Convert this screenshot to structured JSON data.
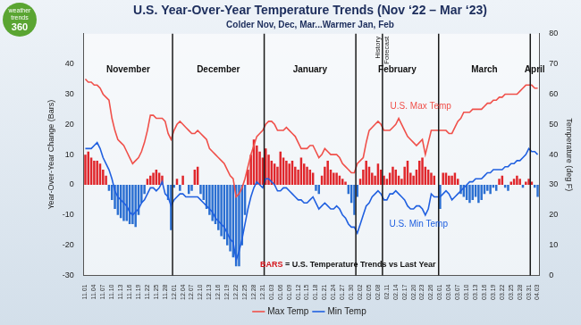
{
  "chart_data": {
    "type": "bar",
    "title": "U.S. Year-Over-Year Temperature Trends (Nov ‘22 – Mar ‘23)",
    "subtitle": "Colder Nov, Dec, Mar...Warmer Jan, Feb",
    "logo": [
      "weather",
      "trends",
      "360"
    ],
    "categories": [
      "11.01",
      null,
      null,
      "11.04",
      null,
      null,
      "11.07",
      null,
      null,
      "11.10",
      null,
      null,
      "11.13",
      null,
      null,
      "11.16",
      null,
      null,
      "11.19",
      null,
      null,
      "11.22",
      null,
      null,
      "11.25",
      null,
      null,
      "11.28",
      null,
      null,
      "12.01",
      null,
      null,
      "12.04",
      null,
      null,
      "12.07",
      null,
      null,
      "12.10",
      null,
      null,
      "12.13",
      null,
      null,
      "12.16",
      null,
      null,
      "12.19",
      null,
      null,
      "12.22",
      null,
      null,
      "12.25",
      null,
      null,
      "12.28",
      null,
      null,
      "12.31",
      null,
      null,
      "01.03",
      null,
      null,
      "01.06",
      null,
      null,
      "01.09",
      null,
      null,
      "01.12",
      null,
      null,
      "01.15",
      null,
      null,
      "01.18",
      null,
      null,
      "01.21",
      null,
      null,
      "01.24",
      null,
      null,
      "01.27",
      null,
      null,
      "01.30",
      null,
      null,
      "02.02",
      null,
      null,
      "02.05",
      null,
      null,
      "02.08",
      null,
      null,
      "02.11",
      null,
      null,
      "02.14",
      null,
      null,
      "02.17",
      null,
      null,
      "02.20",
      null,
      null,
      "02.23",
      null,
      null,
      "02.26",
      null,
      null,
      "03.01",
      null,
      null,
      "03.04",
      null,
      null,
      "03.07",
      null,
      null,
      "03.10",
      null,
      null,
      "03.13",
      null,
      null,
      "03.16",
      null,
      null,
      "03.19",
      null,
      null,
      "03.22",
      null,
      null,
      "03.25",
      null,
      null,
      "03.28",
      null,
      null,
      "03.31",
      null,
      null,
      "04.03"
    ],
    "bars": {
      "values": [
        10,
        11,
        9,
        8,
        8,
        7,
        5,
        3,
        -2,
        -5,
        -8,
        -10,
        -11,
        -12,
        -12,
        -13,
        -13,
        -14,
        -10,
        -6,
        -3,
        2,
        3,
        4,
        5,
        4,
        3,
        0,
        -5,
        -15,
        -1,
        2,
        -2,
        3,
        0,
        -3,
        -2,
        5,
        6,
        -3,
        -5,
        -8,
        -10,
        -12,
        -13,
        -15,
        -17,
        -18,
        -20,
        -22,
        -24,
        -27,
        -27,
        -20,
        -10,
        5,
        10,
        15,
        13,
        11,
        9,
        12,
        10,
        8,
        7,
        6,
        11,
        9,
        8,
        7,
        8,
        6,
        5,
        9,
        7,
        6,
        5,
        4,
        -2,
        -3,
        3,
        6,
        8,
        5,
        4,
        4,
        3,
        2,
        1,
        -3,
        -6,
        -10,
        -4,
        2,
        5,
        8,
        6,
        4,
        3,
        7,
        5,
        3,
        2,
        4,
        6,
        5,
        3,
        2,
        6,
        8,
        4,
        3,
        5,
        8,
        9,
        6,
        5,
        4,
        3,
        0,
        -8,
        4,
        4,
        3,
        3,
        4,
        2,
        -3,
        -4,
        -5,
        -6,
        -5,
        -4,
        -6,
        -5,
        -3,
        -2,
        -3,
        -1,
        -2,
        2,
        3,
        -1,
        -2,
        1,
        2,
        3,
        2,
        -1,
        1,
        2,
        1,
        -1,
        -4
      ],
      "colors": [
        "#e0262b",
        "#e0262b",
        "#e0262b",
        "#e0262b",
        "#e0262b",
        "#e0262b",
        "#e0262b",
        "#e0262b",
        "#2b6fd1",
        "#2b6fd1",
        "#2b6fd1",
        "#2b6fd1",
        "#2b6fd1",
        "#2b6fd1",
        "#2b6fd1",
        "#2b6fd1",
        "#2b6fd1",
        "#2b6fd1",
        "#2b6fd1",
        "#2b6fd1",
        "#2b6fd1",
        "#e0262b",
        "#e0262b",
        "#e0262b",
        "#e0262b",
        "#e0262b",
        "#e0262b",
        "#e0262b",
        "#2b6fd1",
        "#2b6fd1",
        "#2b6fd1",
        "#e0262b",
        "#2b6fd1",
        "#e0262b",
        "#e0262b",
        "#2b6fd1",
        "#2b6fd1",
        "#e0262b",
        "#e0262b",
        "#2b6fd1",
        "#2b6fd1",
        "#2b6fd1",
        "#2b6fd1",
        "#2b6fd1",
        "#2b6fd1",
        "#2b6fd1",
        "#2b6fd1",
        "#2b6fd1",
        "#2b6fd1",
        "#2b6fd1",
        "#2b6fd1",
        "#2b6fd1",
        "#2b6fd1",
        "#2b6fd1",
        "#2b6fd1",
        "#e0262b",
        "#e0262b",
        "#e0262b",
        "#e0262b",
        "#e0262b",
        "#e0262b",
        "#e0262b",
        "#e0262b",
        "#e0262b",
        "#e0262b",
        "#e0262b",
        "#e0262b",
        "#e0262b",
        "#e0262b",
        "#e0262b",
        "#e0262b",
        "#e0262b",
        "#e0262b",
        "#e0262b",
        "#e0262b",
        "#e0262b",
        "#e0262b",
        "#e0262b",
        "#2b6fd1",
        "#2b6fd1",
        "#e0262b",
        "#e0262b",
        "#e0262b",
        "#e0262b",
        "#e0262b",
        "#e0262b",
        "#e0262b",
        "#e0262b",
        "#e0262b",
        "#2b6fd1",
        "#2b6fd1",
        "#2b6fd1",
        "#2b6fd1",
        "#e0262b",
        "#e0262b",
        "#e0262b",
        "#e0262b",
        "#e0262b",
        "#e0262b",
        "#e0262b",
        "#e0262b",
        "#e0262b",
        "#e0262b",
        "#e0262b",
        "#e0262b",
        "#e0262b",
        "#e0262b",
        "#e0262b",
        "#e0262b",
        "#e0262b",
        "#e0262b",
        "#e0262b",
        "#e0262b",
        "#e0262b",
        "#e0262b",
        "#e0262b",
        "#e0262b",
        "#e0262b",
        "#e0262b",
        "#e0262b",
        "#2b6fd1",
        "#e0262b",
        "#e0262b",
        "#e0262b",
        "#e0262b",
        "#e0262b",
        "#e0262b",
        "#2b6fd1",
        "#2b6fd1",
        "#2b6fd1",
        "#2b6fd1",
        "#2b6fd1",
        "#2b6fd1",
        "#2b6fd1",
        "#2b6fd1",
        "#2b6fd1",
        "#2b6fd1",
        "#2b6fd1",
        "#2b6fd1",
        "#2b6fd1",
        "#e0262b",
        "#e0262b",
        "#2b6fd1",
        "#2b6fd1",
        "#e0262b",
        "#e0262b",
        "#e0262b",
        "#e0262b",
        "#2b6fd1",
        "#e0262b",
        "#e0262b",
        "#e0262b",
        "#2b6fd1",
        "#2b6fd1"
      ]
    },
    "series": [
      {
        "name": "Max Temp",
        "type": "line",
        "axis": "y2",
        "color": "#f0504a",
        "values": [
          65,
          64,
          64,
          63,
          63,
          62,
          60,
          59,
          58,
          52,
          48,
          45,
          44,
          43,
          41,
          39,
          37,
          38,
          39,
          41,
          44,
          48,
          53,
          53,
          52,
          52,
          52,
          51,
          47,
          45,
          48,
          50,
          51,
          50,
          49,
          48,
          47,
          47,
          48,
          47,
          46,
          45,
          42,
          41,
          40,
          39,
          38,
          37,
          35,
          33,
          32,
          26,
          27,
          29,
          32,
          36,
          40,
          43,
          46,
          47,
          48,
          50,
          51,
          51,
          50,
          48,
          48,
          48,
          49,
          48,
          47,
          46,
          44,
          42,
          42,
          42,
          43,
          43,
          41,
          39,
          40,
          42,
          41,
          40,
          40,
          40,
          39,
          37,
          36,
          35,
          34,
          34,
          37,
          38,
          39,
          44,
          48,
          49,
          50,
          51,
          50,
          48,
          48,
          48,
          49,
          50,
          52,
          50,
          48,
          46,
          45,
          44,
          43,
          44,
          45,
          40,
          44,
          48,
          48,
          48,
          48,
          48,
          48,
          47,
          47,
          49,
          51,
          52,
          54,
          54,
          54,
          55,
          55,
          55,
          55,
          56,
          57,
          57,
          58,
          58,
          59,
          59,
          60,
          60,
          60,
          60,
          60,
          61,
          62,
          63,
          63,
          63,
          62,
          62
        ]
      },
      {
        "name": "Min Temp",
        "type": "line",
        "axis": "y2",
        "color": "#2060e0",
        "values": [
          42,
          42,
          42,
          43,
          44,
          42,
          39,
          37,
          35,
          32,
          28,
          26,
          25,
          24,
          23,
          21,
          20,
          21,
          22,
          24,
          25,
          27,
          29,
          29,
          28,
          29,
          31,
          27,
          26,
          23,
          25,
          26,
          27,
          27,
          26,
          26,
          26,
          26,
          26,
          25,
          24,
          23,
          22,
          21,
          19,
          18,
          17,
          16,
          14,
          12,
          11,
          5,
          8,
          12,
          17,
          22,
          26,
          29,
          31,
          30,
          29,
          32,
          32,
          31,
          30,
          28,
          28,
          29,
          29,
          28,
          27,
          26,
          25,
          25,
          24,
          24,
          25,
          26,
          24,
          22,
          23,
          24,
          23,
          22,
          22,
          23,
          22,
          20,
          19,
          17,
          16,
          16,
          14,
          17,
          20,
          23,
          24,
          26,
          27,
          28,
          27,
          25,
          25,
          27,
          27,
          28,
          27,
          26,
          25,
          23,
          22,
          22,
          23,
          23,
          22,
          20,
          22,
          27,
          26,
          26,
          26,
          27,
          28,
          27,
          25,
          26,
          27,
          28,
          29,
          30,
          31,
          31,
          32,
          32,
          32,
          33,
          34,
          34,
          35,
          35,
          35,
          35,
          36,
          36,
          37,
          37,
          38,
          38,
          39,
          40,
          42,
          41,
          41,
          40
        ]
      }
    ],
    "ylabel": "Year-Over-Year Change (Bars)",
    "y2label": "Temperature (deg F)",
    "ylim": [
      -30,
      50
    ],
    "yticks": [
      -30,
      -20,
      -10,
      0,
      10,
      20,
      30,
      40
    ],
    "y2lim": [
      0,
      80
    ],
    "y2ticks": [
      0,
      10,
      20,
      30,
      40,
      50,
      60,
      70,
      80
    ],
    "grid": false,
    "legend": "bottom",
    "annotations": {
      "months": [
        "November",
        "December",
        "January",
        "February",
        "March",
        "April"
      ],
      "history": "History",
      "forecast": "Forecast",
      "max_label": "U.S. Max Temp",
      "min_label": "U.S. Min Temp",
      "bars_note": [
        "BARS",
        "= U.S. Temperature Trends vs Last Year"
      ]
    }
  }
}
